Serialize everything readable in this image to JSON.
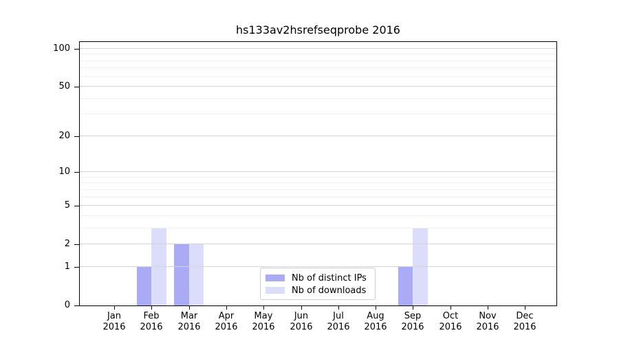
{
  "chart_data": {
    "type": "bar",
    "title": "hs133av2hsrefseqprobe 2016",
    "categories": [
      "Jan 2016",
      "Feb 2016",
      "Mar 2016",
      "Apr 2016",
      "May 2016",
      "Jun 2016",
      "Jul 2016",
      "Aug 2016",
      "Sep 2016",
      "Oct 2016",
      "Nov 2016",
      "Dec 2016"
    ],
    "series": [
      {
        "name": "Nb of distinct IPs",
        "color": "#aaaaf5",
        "values": [
          0,
          1,
          2,
          0,
          0,
          0,
          0,
          0,
          1,
          0,
          0,
          0
        ]
      },
      {
        "name": "Nb of downloads",
        "color": "#dcdcfb",
        "values": [
          0,
          3,
          2,
          0,
          0,
          0,
          0,
          0,
          3,
          0,
          0,
          0
        ]
      }
    ],
    "xlabel": "",
    "ylabel": "",
    "y_axis": {
      "scale": "symlog",
      "major_ticks": [
        0,
        1,
        2,
        5,
        10,
        20,
        50,
        100
      ],
      "minor_gridlines": [
        3,
        4,
        6,
        7,
        8,
        9,
        30,
        40,
        60,
        70,
        80,
        90
      ],
      "ylim": [
        0,
        113
      ]
    },
    "grid": true,
    "legend_position": "lower center"
  },
  "colors": {
    "bar_distinct_ips": "#aaaaf5",
    "bar_downloads": "#dcdcfb",
    "grid_major": "#d3d3d3",
    "grid_minor": "#f1f1f1",
    "axis": "#000000",
    "background": "#ffffff"
  }
}
